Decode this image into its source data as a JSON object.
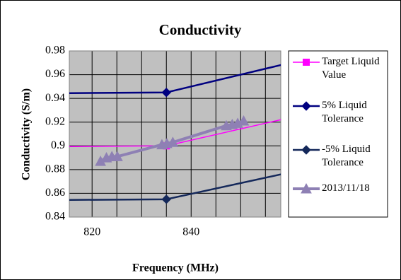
{
  "chart_data": {
    "type": "line",
    "title": "Conductivity",
    "xlabel": "Frequency (MHz)",
    "ylabel": "Conductivity (S/m)",
    "xlim": [
      815.4,
      858.1
    ],
    "xticks": [
      820,
      840
    ],
    "xgrid_minor": [
      825,
      830,
      835,
      845,
      850,
      855
    ],
    "ylim": [
      0.84,
      0.98
    ],
    "yticks": [
      0.84,
      0.86,
      0.88,
      0.9,
      0.92,
      0.94,
      0.96,
      0.98
    ],
    "grid": true,
    "background": "#c0c0c0",
    "legend": "right",
    "series": [
      {
        "name": "Target Liquid Value",
        "color": "#ff00ff",
        "marker": "square",
        "width": 1.5,
        "x": [
          800,
          835,
          900
        ],
        "values": [
          0.899,
          0.9,
          0.962
        ]
      },
      {
        "name": "5% Liquid Tolerance",
        "color": "#000080",
        "marker": "diamond",
        "width": 2.5,
        "x": [
          800,
          835,
          900
        ],
        "values": [
          0.944,
          0.945,
          1.01
        ]
      },
      {
        "name": "-5% Liquid Tolerance",
        "color": "#14285a",
        "marker": "diamond",
        "width": 2.5,
        "x": [
          800,
          835,
          900
        ],
        "values": [
          0.854,
          0.855,
          0.914
        ]
      },
      {
        "name": "2013/11/18",
        "color": "#8e80b4",
        "marker": "triangle",
        "width": 4,
        "x": [
          821.7,
          822.9,
          824,
          825.1,
          834.1,
          835.1,
          836.3,
          847.1,
          848.3,
          849.4,
          850.6
        ],
        "values": [
          0.887,
          0.89,
          0.891,
          0.891,
          0.901,
          0.902,
          0.903,
          0.917,
          0.918,
          0.919,
          0.921
        ]
      }
    ]
  }
}
